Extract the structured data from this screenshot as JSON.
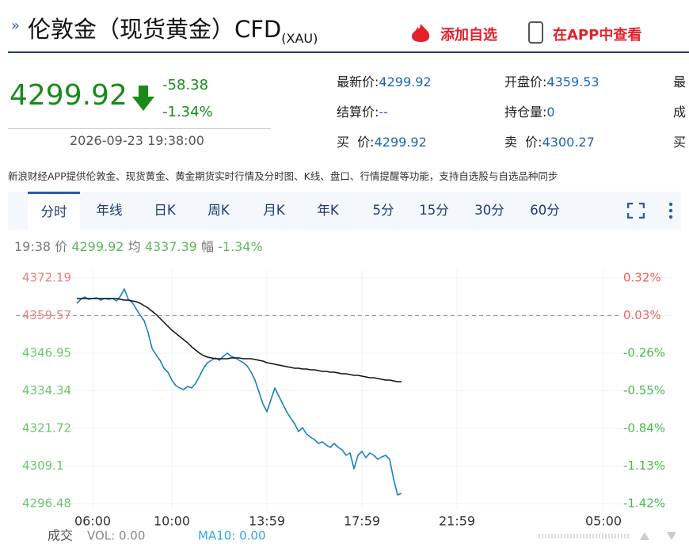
{
  "header": {
    "title": "伦敦金（现货黄金）CFD",
    "title_sub": "(XAU)",
    "add_watchlist": "添加自选",
    "open_app": "在APP中查看"
  },
  "quote": {
    "price": "4299.92",
    "change": "-58.38",
    "change_pct": "-1.34%",
    "time": "2026-09-23 19:38:00",
    "fields": [
      {
        "label": "最新价:",
        "value": "4299.92"
      },
      {
        "label": "开盘价:",
        "value": "4359.53"
      },
      {
        "label": "最"
      },
      {
        "label": "结算价:",
        "value": "--"
      },
      {
        "label": "持仓量:",
        "value": "0"
      },
      {
        "label": "成"
      },
      {
        "label": "买  价:",
        "value": "4299.92"
      },
      {
        "label": "卖  价:",
        "value": "4300.27"
      },
      {
        "label": "买"
      }
    ]
  },
  "notice": "新浪财经APP提供伦敦金、现货黄金、黄金期货实时行情及分时图、K线、盘口、行情提醒等功能，支持自选股与自选品种同步",
  "tabs": [
    "分时",
    "年线",
    "日K",
    "周K",
    "月K",
    "年K",
    "5分",
    "15分",
    "30分",
    "60分"
  ],
  "info_line": {
    "time": "19:38",
    "price_label": "价",
    "price": "4299.92",
    "avg_label": "均",
    "avg": "4337.39",
    "range_label": "幅",
    "range": "-1.34%"
  },
  "volume": {
    "label": "成交",
    "vol": "VOL: 0.00",
    "ma": "MA10: 0.00"
  },
  "chart_data": {
    "type": "line",
    "categories": [
      null,
      null,
      null,
      null,
      "06:00",
      null,
      null,
      null,
      null,
      null,
      null,
      null,
      null,
      null,
      null,
      null,
      null,
      null,
      null,
      null,
      null,
      null,
      null,
      null,
      "10:00",
      null,
      null,
      null,
      null,
      null,
      null,
      null,
      null,
      null,
      null,
      null,
      null,
      null,
      null,
      null,
      null,
      null,
      null,
      null,
      null,
      null,
      null,
      null,
      "13:59",
      null,
      null,
      null,
      null,
      null,
      null,
      null,
      null,
      null,
      null,
      null,
      null,
      null,
      null,
      null,
      null,
      null,
      null,
      null,
      null,
      null,
      null,
      null,
      "17:59",
      null,
      null,
      null,
      null,
      null,
      null,
      null,
      null,
      null,
      null,
      null,
      null,
      null,
      null,
      null,
      null,
      null,
      null,
      null,
      null,
      null,
      null,
      null,
      "21:59",
      null,
      null,
      null,
      null,
      null,
      null,
      null,
      null,
      null,
      null,
      null,
      null,
      null,
      null,
      null,
      null,
      null,
      null,
      null,
      null,
      null,
      null,
      null,
      null,
      null,
      null,
      null,
      null,
      null,
      null,
      null,
      null,
      null,
      null,
      null,
      null,
      "05:00"
    ],
    "series": [
      {
        "color": "#1a7fc4",
        "values": [
          4363.69,
          4365.02,
          4365.81,
          4365.02,
          4365.28,
          4365.55,
          4364.75,
          4365.28,
          4365.02,
          4365.28,
          4364.49,
          4366.08,
          4368.47,
          4365.02,
          4363.95,
          4361.83,
          4359.7,
          4357.84,
          4353.86,
          4348.55,
          4346.42,
          4344.56,
          4341.91,
          4340.58,
          4337.92,
          4336.06,
          4335.26,
          4334.73,
          4335.8,
          4335.26,
          4336.86,
          4339.25,
          4341.91,
          4343.77,
          4344.56,
          4345.36,
          4344.56,
          4345.89,
          4346.95,
          4345.89,
          4345.36,
          4344.56,
          4343.77,
          4342.7,
          4340.58,
          4337.92,
          4333.94,
          4329.95,
          4327.29,
          4331.28,
          4335.26,
          4332.61,
          4329.95,
          4327.29,
          4325.17,
          4323.31,
          4320.65,
          4321.98,
          4319.86,
          4318.79,
          4318.0,
          4316.67,
          4317.2,
          4316.14,
          4315.34,
          4316.67,
          4315.34,
          4314.54,
          4312.68,
          4313.48,
          4308.17,
          4312.68,
          4314.01,
          4311.89,
          4313.48,
          4312.68,
          4311.36,
          4312.15,
          4312.68,
          4311.36,
          4304.71,
          4299.4,
          4299.92,
          null,
          null,
          null,
          null,
          null,
          null,
          null,
          null,
          null,
          null,
          null,
          null,
          null,
          null,
          null,
          null,
          null,
          null,
          null,
          null,
          null,
          null,
          null,
          null,
          null,
          null,
          null,
          null,
          null,
          null,
          null,
          null,
          null,
          null,
          null,
          null,
          null,
          null,
          null,
          null,
          null,
          null,
          null,
          null,
          null,
          null,
          null,
          null,
          null,
          null,
          null
        ]
      },
      {
        "color": "#111111",
        "values": [
          4365.28,
          4365.28,
          4365.28,
          4365.28,
          4365.28,
          4365.28,
          4365.28,
          4365.28,
          4365.28,
          4365.28,
          4365.28,
          4365.02,
          4364.75,
          4364.75,
          4364.49,
          4364.22,
          4363.69,
          4362.89,
          4362.1,
          4361.03,
          4359.97,
          4358.64,
          4357.31,
          4355.99,
          4354.66,
          4353.59,
          4352.53,
          4351.47,
          4350.41,
          4349.08,
          4348.02,
          4346.95,
          4346.16,
          4345.63,
          4345.36,
          4345.09,
          4345.09,
          4345.09,
          4345.09,
          4345.36,
          4345.36,
          4345.36,
          4345.09,
          4345.09,
          4345.09,
          4344.83,
          4344.56,
          4344.3,
          4343.77,
          4343.5,
          4343.24,
          4342.97,
          4342.7,
          4342.44,
          4342.17,
          4341.91,
          4341.91,
          4341.64,
          4341.64,
          4341.38,
          4341.38,
          4341.11,
          4340.84,
          4340.84,
          4340.58,
          4340.58,
          4340.31,
          4340.05,
          4340.05,
          4339.78,
          4339.51,
          4339.51,
          4339.25,
          4338.98,
          4338.72,
          4338.72,
          4338.45,
          4338.19,
          4337.92,
          4337.92,
          4337.66,
          4337.39,
          4337.39,
          null,
          null,
          null,
          null,
          null,
          null,
          null,
          null,
          null,
          null,
          null,
          null,
          null,
          null,
          null,
          null,
          null,
          null,
          null,
          null,
          null,
          null,
          null,
          null,
          null,
          null,
          null,
          null,
          null,
          null,
          null,
          null,
          null,
          null,
          null,
          null,
          null,
          null,
          null,
          null,
          null,
          null,
          null,
          null,
          null,
          null,
          null,
          null,
          null,
          null,
          null
        ]
      }
    ],
    "ylim": [
      4296.48,
      4372.19
    ],
    "yticks": [
      4372.19,
      4359.57,
      4346.95,
      4334.34,
      4321.72,
      4309.1,
      4296.48
    ],
    "y2lim": [
      -1.42,
      0.32
    ],
    "y2ticks": [
      {
        "value": 0.32,
        "label": "0.32%"
      },
      {
        "value": 0.03,
        "label": "0.03%"
      },
      {
        "value": -0.26,
        "label": "-0.26%"
      },
      {
        "value": -0.55,
        "label": "-0.55%"
      },
      {
        "value": -0.84,
        "label": "-0.84%"
      },
      {
        "value": -1.13,
        "label": "-1.13%"
      },
      {
        "value": -1.42,
        "label": "-1.42%"
      }
    ],
    "reference_line": 4359.57,
    "grid": true
  }
}
